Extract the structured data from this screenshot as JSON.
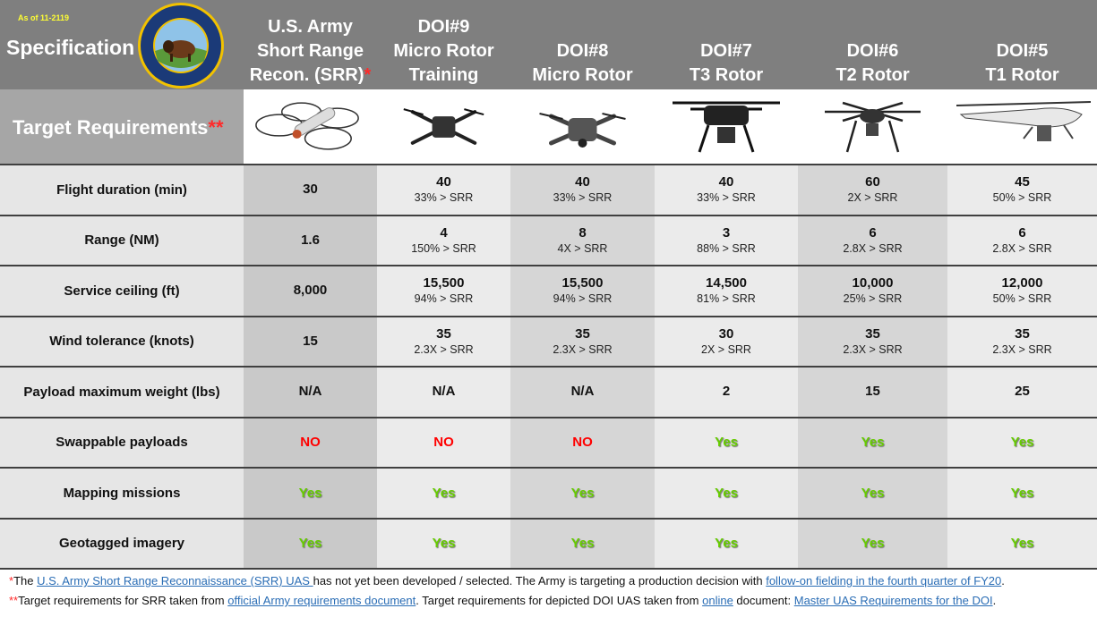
{
  "header": {
    "as_of": "As of 11-2119",
    "spec_label": "Specification",
    "seal_text": "OFFICE OF AVIATION SERVICES · U.S. DEPARTMENT OF THE INTERIOR · 1973 · MARCH 3, 1849 · 2018 · 45 YEARS",
    "target_label": "Target Requirements",
    "target_mark": "**"
  },
  "columns": [
    {
      "lines": [
        "U.S. Army",
        "Short Range",
        "Recon. (SRR)"
      ],
      "mark": "*",
      "image": "srr-drone"
    },
    {
      "lines": [
        "DOI#9",
        "Micro Rotor",
        "Training"
      ],
      "mark": "",
      "image": "doi9-drone"
    },
    {
      "lines": [
        "DOI#8",
        "Micro Rotor"
      ],
      "mark": "",
      "image": "doi8-drone"
    },
    {
      "lines": [
        "DOI#7",
        "T3 Rotor"
      ],
      "mark": "",
      "image": "doi7-drone"
    },
    {
      "lines": [
        "DOI#6",
        "T2 Rotor"
      ],
      "mark": "",
      "image": "doi6-drone"
    },
    {
      "lines": [
        "DOI#5",
        "T1 Rotor"
      ],
      "mark": "",
      "image": "doi5-drone"
    }
  ],
  "rows": [
    {
      "label": "Flight duration (min)",
      "cells": [
        {
          "v": "30"
        },
        {
          "v": "40",
          "s": "33% > SRR"
        },
        {
          "v": "40",
          "s": "33% > SRR"
        },
        {
          "v": "40",
          "s": "33% > SRR"
        },
        {
          "v": "60",
          "s": "2X > SRR"
        },
        {
          "v": "45",
          "s": "50% > SRR"
        }
      ]
    },
    {
      "label": "Range (NM)",
      "cells": [
        {
          "v": "1.6"
        },
        {
          "v": "4",
          "s": "150% > SRR"
        },
        {
          "v": "8",
          "s": "4X > SRR"
        },
        {
          "v": "3",
          "s": "88% > SRR"
        },
        {
          "v": "6",
          "s": "2.8X > SRR"
        },
        {
          "v": "6",
          "s": "2.8X > SRR"
        }
      ]
    },
    {
      "label": "Service ceiling (ft)",
      "cells": [
        {
          "v": "8,000"
        },
        {
          "v": "15,500",
          "s": "94% > SRR"
        },
        {
          "v": "15,500",
          "s": "94% > SRR"
        },
        {
          "v": "14,500",
          "s": "81% > SRR"
        },
        {
          "v": "10,000",
          "s": "25% > SRR"
        },
        {
          "v": "12,000",
          "s": "50% > SRR"
        }
      ]
    },
    {
      "label": "Wind tolerance (knots)",
      "cells": [
        {
          "v": "15"
        },
        {
          "v": "35",
          "s": "2.3X > SRR"
        },
        {
          "v": "35",
          "s": "2.3X > SRR"
        },
        {
          "v": "30",
          "s": "2X > SRR"
        },
        {
          "v": "35",
          "s": "2.3X > SRR"
        },
        {
          "v": "35",
          "s": "2.3X > SRR"
        }
      ]
    },
    {
      "label": "Payload maximum weight (lbs)",
      "cells": [
        {
          "v": "N/A"
        },
        {
          "v": "N/A"
        },
        {
          "v": "N/A"
        },
        {
          "v": "2"
        },
        {
          "v": "15"
        },
        {
          "v": "25"
        }
      ]
    },
    {
      "label": "Swappable payloads",
      "cells": [
        {
          "b": "NO"
        },
        {
          "b": "NO"
        },
        {
          "b": "NO"
        },
        {
          "b": "Yes"
        },
        {
          "b": "Yes"
        },
        {
          "b": "Yes"
        }
      ]
    },
    {
      "label": "Mapping missions",
      "cells": [
        {
          "b": "Yes"
        },
        {
          "b": "Yes"
        },
        {
          "b": "Yes"
        },
        {
          "b": "Yes"
        },
        {
          "b": "Yes"
        },
        {
          "b": "Yes"
        }
      ]
    },
    {
      "label": "Geotagged imagery",
      "cells": [
        {
          "b": "Yes"
        },
        {
          "b": "Yes"
        },
        {
          "b": "Yes"
        },
        {
          "b": "Yes"
        },
        {
          "b": "Yes"
        },
        {
          "b": "Yes"
        }
      ]
    }
  ],
  "footnotes": [
    {
      "mark": "*",
      "parts": [
        {
          "t": "The "
        },
        {
          "t": "U.S. Army Short Range Reconnaissance (SRR) UAS ",
          "link": true
        },
        {
          "t": "has not yet been developed / selected.  The Army is targeting a production decision with "
        },
        {
          "t": "follow-on fielding in the fourth quarter of FY20",
          "link": true
        },
        {
          "t": "."
        }
      ]
    },
    {
      "mark": "**",
      "parts": [
        {
          "t": "Target requirements for SRR taken from "
        },
        {
          "t": "official Army requirements document",
          "link": true
        },
        {
          "t": ".  Target requirements for depicted DOI UAS taken from "
        },
        {
          "t": "online",
          "link": true
        },
        {
          "t": " document: "
        },
        {
          "t": "Master UAS Requirements for the DOI",
          "link": true
        },
        {
          "t": "."
        }
      ]
    }
  ],
  "colors": {
    "yes": "#66cc00",
    "no": "#ff0000",
    "header": "#7f7f7f",
    "link": "#2a6db5",
    "asterisk": "#ff2a2a"
  }
}
